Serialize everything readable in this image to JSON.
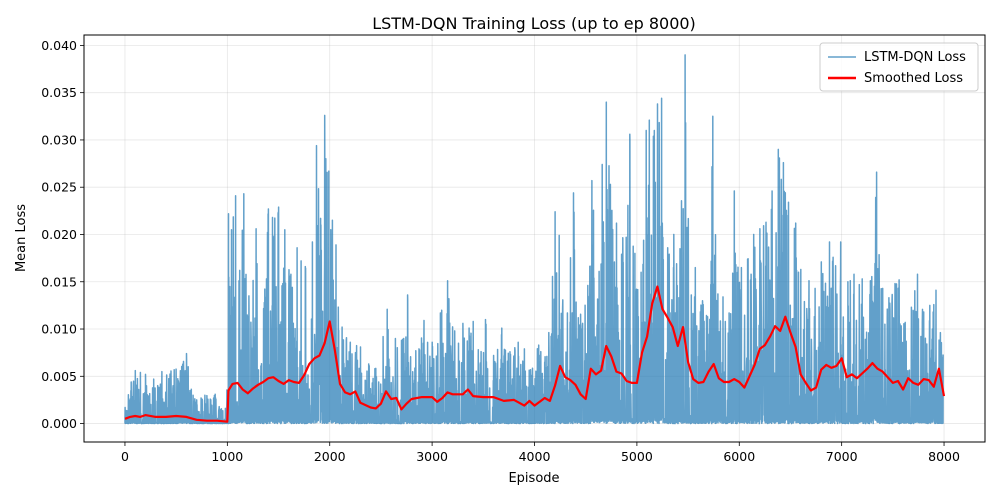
{
  "chart_data": {
    "type": "line",
    "title": "LSTM-DQN Training Loss (up to ep 8000)",
    "xlabel": "Episode",
    "ylabel": "Mean Loss",
    "xlim": [
      -400,
      8400
    ],
    "ylim": [
      -0.00195,
      0.0411
    ],
    "xticks": [
      0,
      1000,
      2000,
      3000,
      4000,
      5000,
      6000,
      7000,
      8000
    ],
    "xtick_labels": [
      "0",
      "1000",
      "2000",
      "3000",
      "4000",
      "5000",
      "6000",
      "7000",
      "8000"
    ],
    "yticks": [
      0.0,
      0.005,
      0.01,
      0.015,
      0.02,
      0.025,
      0.03,
      0.035,
      0.04
    ],
    "ytick_labels": [
      "0.000",
      "0.005",
      "0.010",
      "0.015",
      "0.020",
      "0.025",
      "0.030",
      "0.035",
      "0.040"
    ],
    "grid": true,
    "legend_position": "top-right",
    "series": [
      {
        "name": "LSTM-DQN Loss",
        "color": "#1f77b4",
        "alpha": 0.7,
        "peaks": [
          [
            0,
            0.0017
          ],
          [
            60,
            0.0044
          ],
          [
            100,
            0.0056
          ],
          [
            150,
            0.0054
          ],
          [
            200,
            0.0052
          ],
          [
            280,
            0.0047
          ],
          [
            360,
            0.0055
          ],
          [
            480,
            0.0057
          ],
          [
            600,
            0.0074
          ],
          [
            700,
            0.0025
          ],
          [
            780,
            0.003
          ],
          [
            880,
            0.0031
          ],
          [
            980,
            0.0016
          ],
          [
            1010,
            0.0222
          ],
          [
            1040,
            0.0205
          ],
          [
            1080,
            0.0241
          ],
          [
            1120,
            0.0162
          ],
          [
            1160,
            0.0243
          ],
          [
            1210,
            0.0135
          ],
          [
            1280,
            0.0206
          ],
          [
            1360,
            0.0128
          ],
          [
            1400,
            0.0227
          ],
          [
            1440,
            0.0218
          ],
          [
            1500,
            0.0229
          ],
          [
            1560,
            0.0205
          ],
          [
            1620,
            0.0158
          ],
          [
            1680,
            0.0186
          ],
          [
            1760,
            0.0166
          ],
          [
            1830,
            0.0192
          ],
          [
            1870,
            0.0294
          ],
          [
            1910,
            0.0217
          ],
          [
            1950,
            0.0326
          ],
          [
            1990,
            0.0267
          ],
          [
            2060,
            0.0189
          ],
          [
            2120,
            0.0102
          ],
          [
            2200,
            0.0086
          ],
          [
            2300,
            0.0081
          ],
          [
            2380,
            0.0063
          ],
          [
            2440,
            0.0058
          ],
          [
            2520,
            0.0092
          ],
          [
            2560,
            0.0121
          ],
          [
            2640,
            0.009
          ],
          [
            2700,
            0.0088
          ],
          [
            2760,
            0.0136
          ],
          [
            2840,
            0.0077
          ],
          [
            2920,
            0.0109
          ],
          [
            3000,
            0.0086
          ],
          [
            3080,
            0.0117
          ],
          [
            3150,
            0.0151
          ],
          [
            3220,
            0.0098
          ],
          [
            3300,
            0.0106
          ],
          [
            3360,
            0.0101
          ],
          [
            3400,
            0.0108
          ],
          [
            3450,
            0.0078
          ],
          [
            3520,
            0.011
          ],
          [
            3600,
            0.0072
          ],
          [
            3680,
            0.0101
          ],
          [
            3760,
            0.0076
          ],
          [
            3840,
            0.0086
          ],
          [
            3900,
            0.0079
          ],
          [
            3960,
            0.0057
          ],
          [
            4040,
            0.0083
          ],
          [
            4120,
            0.0071
          ],
          [
            4200,
            0.0224
          ],
          [
            4240,
            0.0199
          ],
          [
            4320,
            0.0117
          ],
          [
            4380,
            0.0244
          ],
          [
            4460,
            0.01
          ],
          [
            4520,
            0.0146
          ],
          [
            4560,
            0.0257
          ],
          [
            4630,
            0.0161
          ],
          [
            4660,
            0.0274
          ],
          [
            4700,
            0.034
          ],
          [
            4740,
            0.0253
          ],
          [
            4800,
            0.0212
          ],
          [
            4850,
            0.0179
          ],
          [
            4930,
            0.0306
          ],
          [
            4980,
            0.018
          ],
          [
            5040,
            0.016
          ],
          [
            5090,
            0.031
          ],
          [
            5120,
            0.0321
          ],
          [
            5160,
            0.0304
          ],
          [
            5200,
            0.0338
          ],
          [
            5240,
            0.0344
          ],
          [
            5300,
            0.0186
          ],
          [
            5360,
            0.02
          ],
          [
            5420,
            0.0185
          ],
          [
            5470,
            0.039
          ],
          [
            5530,
            0.0136
          ],
          [
            5570,
            0.0165
          ],
          [
            5640,
            0.013
          ],
          [
            5690,
            0.0113
          ],
          [
            5740,
            0.0325
          ],
          [
            5790,
            0.0137
          ],
          [
            5840,
            0.0134
          ],
          [
            5900,
            0.0117
          ],
          [
            5950,
            0.0246
          ],
          [
            6020,
            0.0165
          ],
          [
            6080,
            0.0174
          ],
          [
            6140,
            0.02
          ],
          [
            6200,
            0.0206
          ],
          [
            6260,
            0.0213
          ],
          [
            6320,
            0.0246
          ],
          [
            6380,
            0.029
          ],
          [
            6430,
            0.0276
          ],
          [
            6480,
            0.0234
          ],
          [
            6550,
            0.0212
          ],
          [
            6600,
            0.0163
          ],
          [
            6680,
            0.0151
          ],
          [
            6740,
            0.0143
          ],
          [
            6800,
            0.0171
          ],
          [
            6880,
            0.0192
          ],
          [
            6940,
            0.0167
          ],
          [
            6990,
            0.0192
          ],
          [
            7060,
            0.015
          ],
          [
            7120,
            0.0158
          ],
          [
            7200,
            0.0153
          ],
          [
            7280,
            0.0151
          ],
          [
            7340,
            0.0266
          ],
          [
            7400,
            0.0143
          ],
          [
            7460,
            0.0133
          ],
          [
            7520,
            0.0148
          ],
          [
            7560,
            0.0152
          ],
          [
            7620,
            0.0107
          ],
          [
            7680,
            0.0123
          ],
          [
            7740,
            0.0158
          ],
          [
            7800,
            0.0118
          ],
          [
            7860,
            0.0125
          ],
          [
            7920,
            0.0141
          ],
          [
            7990,
            0.0073
          ]
        ]
      },
      {
        "name": "Smoothed Loss",
        "color": "#ff0000",
        "points": [
          [
            0,
            0.0005
          ],
          [
            50,
            0.0007
          ],
          [
            100,
            0.0008
          ],
          [
            150,
            0.0007
          ],
          [
            200,
            0.0009
          ],
          [
            300,
            0.0007
          ],
          [
            400,
            0.0007
          ],
          [
            500,
            0.0008
          ],
          [
            600,
            0.0007
          ],
          [
            700,
            0.0004
          ],
          [
            800,
            0.0003
          ],
          [
            900,
            0.0003
          ],
          [
            1000,
            0.0002
          ],
          [
            1010,
            0.0035
          ],
          [
            1050,
            0.0042
          ],
          [
            1100,
            0.0043
          ],
          [
            1150,
            0.0036
          ],
          [
            1200,
            0.0032
          ],
          [
            1250,
            0.0037
          ],
          [
            1300,
            0.0041
          ],
          [
            1350,
            0.0044
          ],
          [
            1400,
            0.0048
          ],
          [
            1450,
            0.0049
          ],
          [
            1500,
            0.0045
          ],
          [
            1550,
            0.0042
          ],
          [
            1600,
            0.0046
          ],
          [
            1650,
            0.0044
          ],
          [
            1700,
            0.0043
          ],
          [
            1750,
            0.0051
          ],
          [
            1800,
            0.0063
          ],
          [
            1850,
            0.0069
          ],
          [
            1900,
            0.0072
          ],
          [
            1950,
            0.0085
          ],
          [
            2000,
            0.0108
          ],
          [
            2050,
            0.0078
          ],
          [
            2100,
            0.0042
          ],
          [
            2150,
            0.0033
          ],
          [
            2200,
            0.0031
          ],
          [
            2250,
            0.0034
          ],
          [
            2300,
            0.0022
          ],
          [
            2400,
            0.0017
          ],
          [
            2450,
            0.0016
          ],
          [
            2500,
            0.0021
          ],
          [
            2550,
            0.0034
          ],
          [
            2600,
            0.0026
          ],
          [
            2650,
            0.0027
          ],
          [
            2700,
            0.0015
          ],
          [
            2750,
            0.0021
          ],
          [
            2800,
            0.0026
          ],
          [
            2900,
            0.0028
          ],
          [
            3000,
            0.0028
          ],
          [
            3050,
            0.0023
          ],
          [
            3100,
            0.0027
          ],
          [
            3150,
            0.0033
          ],
          [
            3200,
            0.0031
          ],
          [
            3300,
            0.0031
          ],
          [
            3350,
            0.0036
          ],
          [
            3400,
            0.0029
          ],
          [
            3500,
            0.0028
          ],
          [
            3600,
            0.0028
          ],
          [
            3700,
            0.0024
          ],
          [
            3800,
            0.0025
          ],
          [
            3900,
            0.0019
          ],
          [
            3950,
            0.0024
          ],
          [
            4000,
            0.0019
          ],
          [
            4100,
            0.0027
          ],
          [
            4150,
            0.0024
          ],
          [
            4200,
            0.004
          ],
          [
            4250,
            0.0061
          ],
          [
            4300,
            0.0049
          ],
          [
            4350,
            0.0046
          ],
          [
            4400,
            0.0041
          ],
          [
            4450,
            0.0031
          ],
          [
            4500,
            0.0026
          ],
          [
            4550,
            0.0058
          ],
          [
            4600,
            0.0052
          ],
          [
            4650,
            0.0056
          ],
          [
            4700,
            0.0082
          ],
          [
            4750,
            0.0071
          ],
          [
            4800,
            0.0055
          ],
          [
            4850,
            0.0053
          ],
          [
            4900,
            0.0045
          ],
          [
            4950,
            0.0043
          ],
          [
            5000,
            0.0043
          ],
          [
            5050,
            0.0075
          ],
          [
            5100,
            0.0092
          ],
          [
            5150,
            0.0127
          ],
          [
            5200,
            0.0145
          ],
          [
            5250,
            0.0121
          ],
          [
            5300,
            0.0112
          ],
          [
            5350,
            0.0102
          ],
          [
            5400,
            0.0082
          ],
          [
            5450,
            0.0102
          ],
          [
            5500,
            0.0065
          ],
          [
            5550,
            0.0047
          ],
          [
            5600,
            0.0043
          ],
          [
            5650,
            0.0044
          ],
          [
            5700,
            0.0055
          ],
          [
            5750,
            0.0063
          ],
          [
            5800,
            0.0048
          ],
          [
            5850,
            0.0044
          ],
          [
            5900,
            0.0044
          ],
          [
            5950,
            0.0047
          ],
          [
            6000,
            0.0044
          ],
          [
            6050,
            0.0038
          ],
          [
            6100,
            0.005
          ],
          [
            6150,
            0.0062
          ],
          [
            6200,
            0.0079
          ],
          [
            6250,
            0.0083
          ],
          [
            6300,
            0.0092
          ],
          [
            6350,
            0.0103
          ],
          [
            6400,
            0.0098
          ],
          [
            6450,
            0.0113
          ],
          [
            6500,
            0.0096
          ],
          [
            6550,
            0.0081
          ],
          [
            6600,
            0.0052
          ],
          [
            6650,
            0.0043
          ],
          [
            6700,
            0.0035
          ],
          [
            6750,
            0.0038
          ],
          [
            6800,
            0.0057
          ],
          [
            6850,
            0.0062
          ],
          [
            6900,
            0.0059
          ],
          [
            6950,
            0.0061
          ],
          [
            7000,
            0.0069
          ],
          [
            7050,
            0.0049
          ],
          [
            7100,
            0.0052
          ],
          [
            7150,
            0.0048
          ],
          [
            7200,
            0.0053
          ],
          [
            7250,
            0.0058
          ],
          [
            7300,
            0.0064
          ],
          [
            7350,
            0.0058
          ],
          [
            7400,
            0.0055
          ],
          [
            7450,
            0.0049
          ],
          [
            7500,
            0.0043
          ],
          [
            7550,
            0.0045
          ],
          [
            7600,
            0.0036
          ],
          [
            7650,
            0.0048
          ],
          [
            7700,
            0.0043
          ],
          [
            7750,
            0.0041
          ],
          [
            7800,
            0.0047
          ],
          [
            7850,
            0.0046
          ],
          [
            7900,
            0.0039
          ],
          [
            7950,
            0.0058
          ],
          [
            8000,
            0.0029
          ]
        ]
      }
    ]
  }
}
